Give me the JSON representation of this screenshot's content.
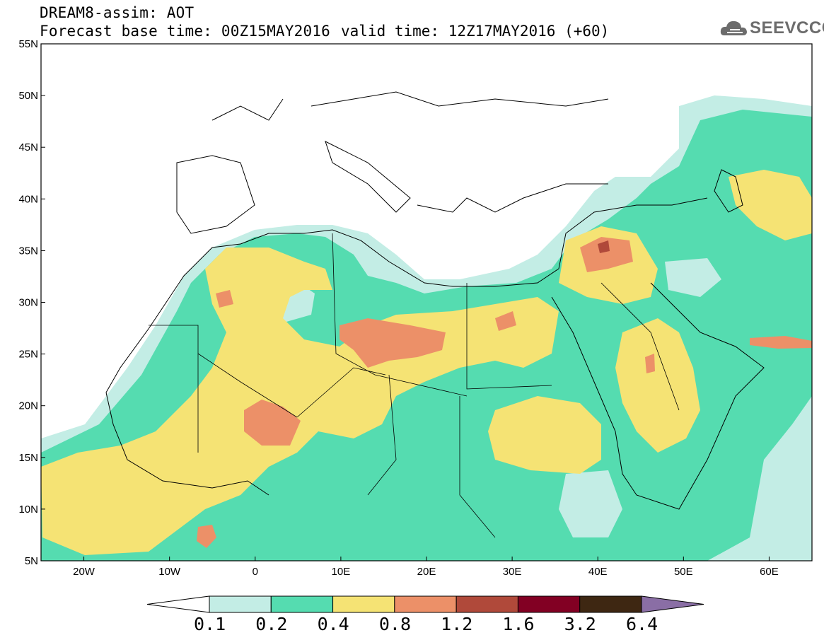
{
  "header": {
    "title": "DREAM8-assim: AOT",
    "base_time": "Forecast base time: 00Z15MAY2016",
    "valid_time": "valid time: 12Z17MAY2016 (+60)",
    "logo_text": "SEEVCCC"
  },
  "axes": {
    "lat_labels": [
      "55N",
      "50N",
      "45N",
      "40N",
      "35N",
      "30N",
      "25N",
      "20N",
      "15N",
      "10N",
      "5N"
    ],
    "lon_labels": [
      "20W",
      "10W",
      "0",
      "10E",
      "20E",
      "30E",
      "40E",
      "50E",
      "60E"
    ],
    "lat_range": [
      5,
      55
    ],
    "lon_range": [
      -25,
      65
    ]
  },
  "colorbar": {
    "labels": [
      "0.1",
      "0.2",
      "0.4",
      "0.8",
      "1.2",
      "1.6",
      "3.2",
      "6.4"
    ],
    "colors": [
      "#ffffff",
      "#c3ede5",
      "#55dcb0",
      "#f5e374",
      "#ec9068",
      "#b0493a",
      "#820023",
      "#3e2712",
      "#8a6ea5"
    ]
  },
  "icons": [
    "cloud-logo-icon"
  ]
}
